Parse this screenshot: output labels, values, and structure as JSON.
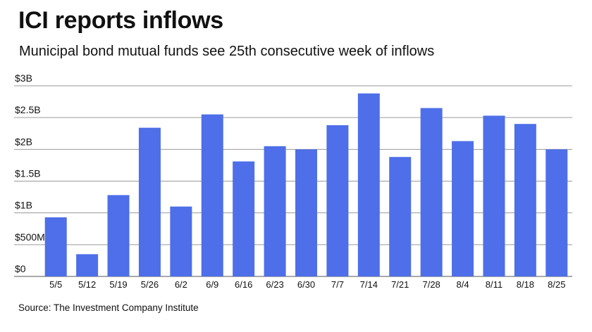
{
  "header": {
    "title": "ICI reports inflows",
    "subtitle": "Municipal bond mutual funds see 25th consecutive week of inflows"
  },
  "footer": {
    "source": "Source: The Investment Company Institute"
  },
  "colors": {
    "bar": "#4e6fe9",
    "grid": "#9a9a9a",
    "axis": "#555555"
  },
  "chart_data": {
    "type": "bar",
    "title": "ICI reports inflows",
    "subtitle": "Municipal bond mutual funds see 25th consecutive week of inflows",
    "xlabel": "",
    "ylabel": "",
    "categories": [
      "5/5",
      "5/12",
      "5/19",
      "5/26",
      "6/2",
      "6/9",
      "6/16",
      "6/23",
      "6/30",
      "7/7",
      "7/14",
      "7/21",
      "7/28",
      "8/4",
      "8/11",
      "8/18",
      "8/25"
    ],
    "values": [
      0.93,
      0.35,
      1.28,
      2.34,
      1.1,
      2.55,
      1.81,
      2.05,
      2.0,
      2.38,
      2.88,
      1.88,
      2.65,
      2.13,
      2.53,
      2.4,
      2.0
    ],
    "units": "billions USD",
    "ylim": [
      0,
      3
    ],
    "y_ticks": [
      0,
      0.5,
      1,
      1.5,
      2,
      2.5,
      3
    ],
    "y_tick_labels": [
      "$0",
      "$500M",
      "$1B",
      "$1.5B",
      "$2B",
      "$2.5B",
      "$3B"
    ],
    "grid": true,
    "legend": "none"
  }
}
